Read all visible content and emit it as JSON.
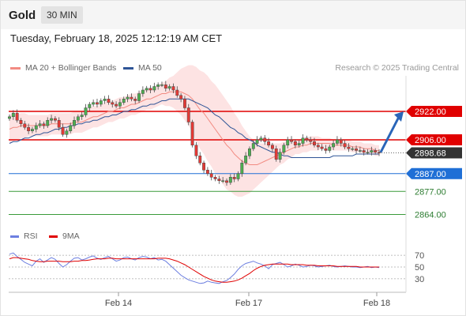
{
  "header": {
    "symbol": "Gold",
    "timeframe": "30 MIN",
    "datetime": "Tuesday, February 18, 2025 12:12:19 AM CET"
  },
  "legend": {
    "ma20_label": "MA 20 + Bollinger Bands",
    "ma20_color": "#f28b82",
    "ma50_label": "MA 50",
    "ma50_color": "#2f5597",
    "credit": "Research © 2025 Trading Central"
  },
  "rsi_legend": {
    "rsi_label": "RSI",
    "rsi_color": "#6d7fe0",
    "ma9_label": "9MA",
    "ma9_color": "#e00000"
  },
  "chart_data": [
    {
      "type": "candlestick",
      "title": "",
      "x_ticks": [
        "Feb 14",
        "Feb 17",
        "Feb 18"
      ],
      "ylim": [
        2858,
        2942
      ],
      "current_price": "2898.68",
      "levels": [
        {
          "label": "2922.00",
          "value": 2922,
          "kind": "resistance",
          "color": "#e00000"
        },
        {
          "label": "2906.00",
          "value": 2906,
          "kind": "resistance",
          "color": "#e00000"
        },
        {
          "label": "2887.00",
          "value": 2887,
          "kind": "pivot",
          "color": "#1f6fd6"
        },
        {
          "label": "2877.00",
          "value": 2877,
          "kind": "support",
          "color": "#3a9a3a"
        },
        {
          "label": "2864.00",
          "value": 2864,
          "kind": "support",
          "color": "#3a9a3a"
        }
      ],
      "projection": {
        "from": 2899,
        "to": 2922,
        "color": "#2a65b8"
      },
      "candle_close": [
        2919,
        2921,
        2917,
        2915,
        2913,
        2911,
        2912,
        2914,
        2915,
        2914,
        2917,
        2918,
        2917,
        2913,
        2909,
        2911,
        2914,
        2917,
        2919,
        2920,
        2924,
        2926,
        2927,
        2926,
        2928,
        2929,
        2927,
        2926,
        2925,
        2927,
        2929,
        2930,
        2929,
        2928,
        2932,
        2934,
        2935,
        2934,
        2936,
        2937,
        2937,
        2935,
        2936,
        2934,
        2931,
        2929,
        2924,
        2916,
        2903,
        2897,
        2893,
        2889,
        2887,
        2885,
        2884,
        2883,
        2883,
        2882,
        2885,
        2884,
        2887,
        2893,
        2897,
        2901,
        2904,
        2906,
        2907,
        2905,
        2903,
        2901,
        2895,
        2899,
        2903,
        2906,
        2905,
        2903,
        2904,
        2907,
        2906,
        2905,
        2903,
        2902,
        2901,
        2900,
        2902,
        2904,
        2906,
        2904,
        2902,
        2901,
        2901,
        2900,
        2900,
        2899,
        2899,
        2900,
        2899,
        2898.68
      ],
      "ma20": [
        2912,
        2913,
        2913,
        2914,
        2914,
        2914,
        2914,
        2914,
        2914,
        2914,
        2914,
        2915,
        2915,
        2915,
        2915,
        2915,
        2915,
        2916,
        2916,
        2916,
        2917,
        2918,
        2919,
        2919,
        2920,
        2921,
        2922,
        2922,
        2923,
        2924,
        2924,
        2925,
        2926,
        2926,
        2927,
        2928,
        2929,
        2929,
        2930,
        2931,
        2932,
        2932,
        2933,
        2933,
        2933,
        2933,
        2932,
        2931,
        2929,
        2926,
        2923,
        2921,
        2918,
        2915,
        2912,
        2909,
        2906,
        2903,
        2901,
        2898,
        2896,
        2894,
        2893,
        2892,
        2892,
        2892,
        2893,
        2894,
        2895,
        2896,
        2897,
        2898,
        2899,
        2900,
        2901,
        2902,
        2902,
        2903,
        2903,
        2904,
        2904,
        2904,
        2904,
        2904,
        2904,
        2903,
        2903,
        2903,
        2903,
        2903,
        2902,
        2902,
        2902,
        2901,
        2901,
        2901,
        2900,
        2900
      ],
      "ma50": [
        2904,
        2905,
        2905,
        2906,
        2907,
        2907,
        2908,
        2909,
        2909,
        2910,
        2910,
        2911,
        2912,
        2912,
        2913,
        2913,
        2914,
        2914,
        2915,
        2915,
        2916,
        2916,
        2917,
        2917,
        2918,
        2919,
        2919,
        2920,
        2920,
        2921,
        2922,
        2922,
        2923,
        2923,
        2924,
        2925,
        2925,
        2926,
        2926,
        2927,
        2928,
        2928,
        2929,
        2929,
        2929,
        2929,
        2929,
        2929,
        2928,
        2927,
        2926,
        2925,
        2924,
        2922,
        2920,
        2919,
        2917,
        2915,
        2913,
        2912,
        2910,
        2909,
        2907,
        2906,
        2905,
        2903,
        2902,
        2901,
        2900,
        2899,
        2899,
        2898,
        2897,
        2897,
        2896,
        2896,
        2896,
        2896,
        2896,
        2896,
        2896,
        2896,
        2896,
        2896,
        2896,
        2897,
        2897,
        2897,
        2897,
        2897,
        2897,
        2898,
        2898,
        2898,
        2898,
        2898,
        2898,
        2898
      ],
      "bb_width": [
        8,
        8,
        7,
        7,
        7,
        6,
        6,
        6,
        6,
        6,
        6,
        6,
        6,
        6,
        6,
        6,
        6,
        6,
        6,
        6,
        6,
        6,
        6,
        6,
        6,
        6,
        6,
        6,
        6,
        6,
        6,
        6,
        6,
        6,
        6,
        6,
        6,
        6,
        6,
        6,
        6,
        7,
        8,
        9,
        11,
        13,
        15,
        17,
        19,
        21,
        22,
        23,
        24,
        24,
        25,
        25,
        25,
        25,
        24,
        23,
        22,
        20,
        18,
        16,
        14,
        12,
        11,
        10,
        9,
        8,
        7,
        6,
        6,
        5,
        5,
        4,
        4,
        4,
        4,
        4,
        4,
        4,
        3,
        3,
        3,
        3,
        3,
        3,
        3,
        3,
        3,
        3,
        3,
        3,
        3,
        3,
        3,
        3
      ]
    },
    {
      "type": "line",
      "title": "",
      "y_ticks": [
        70,
        50,
        30
      ],
      "ylim": [
        15,
        85
      ],
      "series": [
        {
          "name": "RSI",
          "values": [
            72,
            74,
            68,
            63,
            58,
            55,
            52,
            60,
            64,
            58,
            62,
            66,
            63,
            56,
            50,
            54,
            60,
            65,
            66,
            62,
            64,
            67,
            69,
            65,
            63,
            66,
            68,
            64,
            60,
            62,
            66,
            67,
            64,
            62,
            66,
            68,
            67,
            64,
            66,
            62,
            63,
            60,
            54,
            48,
            42,
            36,
            32,
            28,
            26,
            24,
            22,
            23,
            26,
            24,
            23,
            22,
            25,
            27,
            32,
            38,
            46,
            52,
            56,
            58,
            60,
            57,
            55,
            52,
            47,
            54,
            56,
            58,
            54,
            50,
            52,
            55,
            53,
            50,
            51,
            53,
            52,
            50,
            51,
            52,
            53,
            51,
            50,
            51,
            52,
            51,
            50,
            50,
            49,
            50,
            51,
            49,
            50,
            49
          ]
        },
        {
          "name": "9MA",
          "values": [
            64,
            66,
            66,
            65,
            64,
            63,
            61,
            60,
            59,
            59,
            60,
            60,
            60,
            60,
            59,
            59,
            59,
            60,
            60,
            61,
            61,
            62,
            63,
            64,
            64,
            64,
            65,
            65,
            64,
            64,
            64,
            64,
            64,
            64,
            64,
            64,
            64,
            64,
            64,
            65,
            65,
            65,
            64,
            62,
            60,
            57,
            54,
            50,
            46,
            42,
            38,
            34,
            31,
            28,
            26,
            25,
            24,
            24,
            25,
            26,
            28,
            31,
            35,
            39,
            44,
            48,
            51,
            53,
            54,
            55,
            55,
            55,
            55,
            55,
            54,
            54,
            54,
            54,
            53,
            53,
            53,
            52,
            52,
            52,
            52,
            52,
            51,
            51,
            51,
            51,
            51,
            51,
            50,
            50,
            50,
            50,
            50,
            50
          ]
        }
      ]
    }
  ]
}
